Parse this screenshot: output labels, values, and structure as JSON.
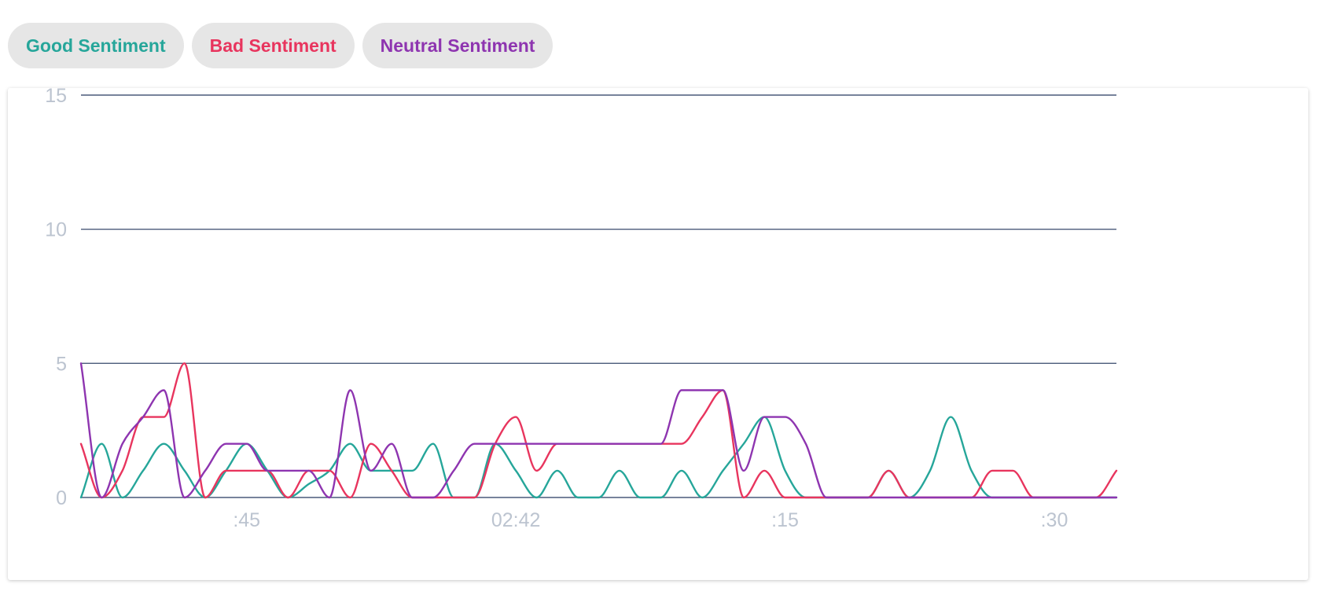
{
  "legend": [
    {
      "label": "Good Sentiment",
      "color": "#26a69a"
    },
    {
      "label": "Bad Sentiment",
      "color": "#e8355e"
    },
    {
      "label": "Neutral Sentiment",
      "color": "#8e35b0"
    }
  ],
  "chart_data": {
    "type": "line",
    "title": "",
    "xlabel": "",
    "ylabel": "",
    "ylim": [
      0,
      15
    ],
    "grid": true,
    "yticks": [
      "0",
      "5",
      "10",
      "15"
    ],
    "xticks": [
      {
        "label": ":45",
        "x": 8
      },
      {
        "label": "02:42",
        "x": 21
      },
      {
        "label": ":15",
        "x": 34
      },
      {
        "label": ":30",
        "x": 47
      }
    ],
    "x": [
      0,
      1,
      2,
      3,
      4,
      5,
      6,
      7,
      8,
      9,
      10,
      11,
      12,
      13,
      14,
      15,
      16,
      17,
      18,
      19,
      20,
      21,
      22,
      23,
      24,
      25,
      26,
      27,
      28,
      29,
      30,
      31,
      32,
      33,
      34,
      35,
      36,
      37,
      38,
      39,
      40,
      41,
      42,
      43,
      44,
      45,
      46,
      47,
      48,
      49,
      50
    ],
    "series": [
      {
        "name": "Good Sentiment",
        "color": "#26a69a",
        "values": [
          0,
          2,
          0,
          1,
          2,
          1,
          0,
          1,
          2,
          1,
          0,
          0.5,
          1,
          2,
          1,
          1,
          1,
          2,
          0,
          0,
          2,
          1,
          0,
          1,
          0,
          0,
          1,
          0,
          0,
          1,
          0,
          1,
          2,
          3,
          1,
          0,
          0,
          0,
          0,
          1,
          0,
          1,
          3,
          1,
          0,
          0,
          0,
          0,
          0,
          0,
          0
        ]
      },
      {
        "name": "Bad Sentiment",
        "color": "#e8355e",
        "values": [
          2,
          0,
          1,
          3,
          3,
          5,
          0,
          1,
          1,
          1,
          0,
          1,
          1,
          0,
          2,
          1,
          0,
          0,
          0,
          0,
          2,
          3,
          1,
          2,
          2,
          2,
          2,
          2,
          2,
          2,
          3,
          4,
          0,
          1,
          0,
          0,
          0,
          0,
          0,
          1,
          0,
          0,
          0,
          0,
          1,
          1,
          0,
          0,
          0,
          0,
          1
        ]
      },
      {
        "name": "Neutral Sentiment",
        "color": "#8e35b0",
        "values": [
          5,
          0,
          2,
          3,
          4,
          0,
          1,
          2,
          2,
          1,
          1,
          1,
          0,
          4,
          1,
          2,
          0,
          0,
          1,
          2,
          2,
          2,
          2,
          2,
          2,
          2,
          2,
          2,
          2,
          4,
          4,
          4,
          1,
          3,
          3,
          2,
          0,
          0,
          0,
          0,
          0,
          0,
          0,
          0,
          0,
          0,
          0,
          0,
          0,
          0,
          0
        ]
      }
    ]
  }
}
